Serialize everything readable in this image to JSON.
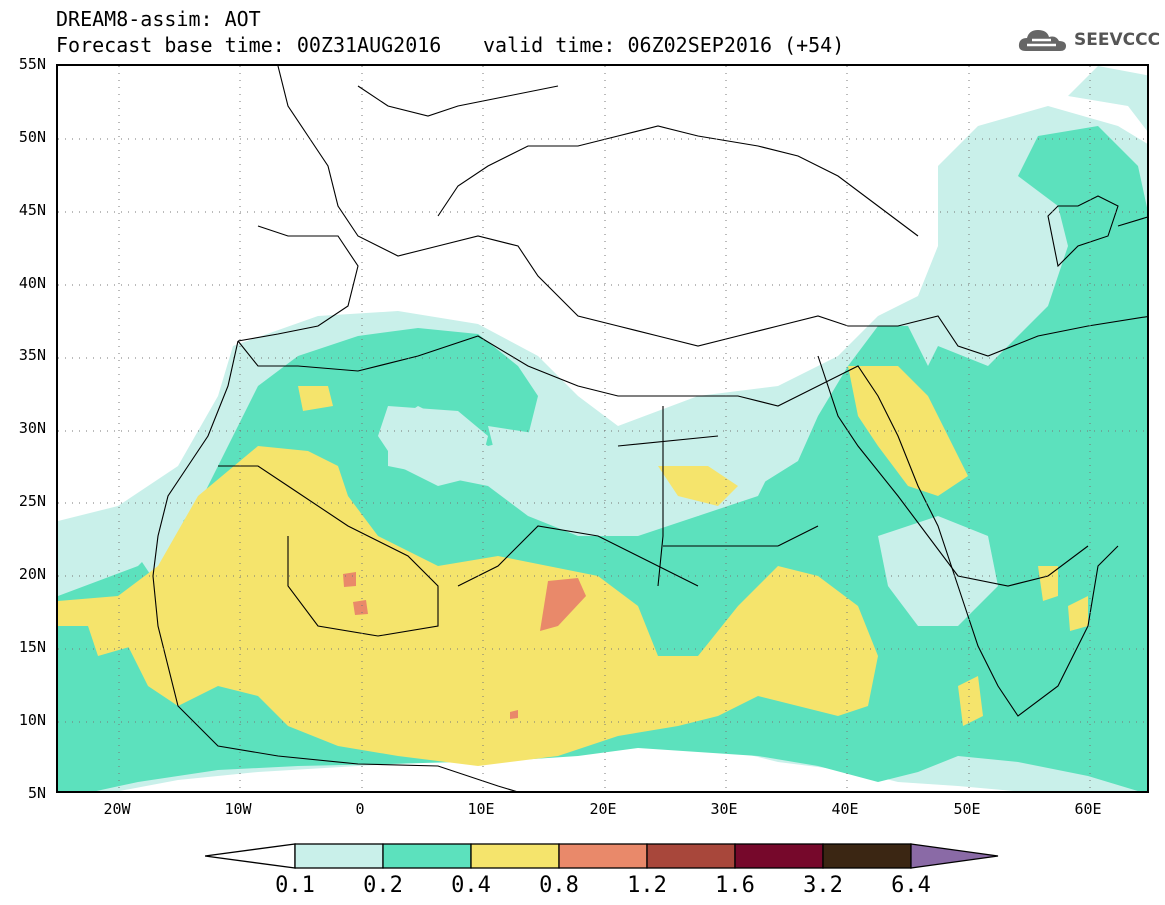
{
  "header": {
    "title": "DREAM8-assim: AOT",
    "base_time": "Forecast base time: 00Z31AUG2016",
    "valid_time": "valid time: 06Z02SEP2016 (+54)"
  },
  "logo": {
    "text": "SEEVCCC",
    "icon": "cloud-logo-icon"
  },
  "map": {
    "lon_range": [
      -25,
      65
    ],
    "lat_range": [
      5,
      55
    ],
    "lat_ticks": [
      "55N",
      "50N",
      "45N",
      "40N",
      "35N",
      "30N",
      "25N",
      "20N",
      "15N",
      "10N",
      "5N"
    ],
    "lon_ticks": [
      "20W",
      "10W",
      "0",
      "10E",
      "20E",
      "30E",
      "40E",
      "50E",
      "60E"
    ],
    "grid": "dotted"
  },
  "colorbar": {
    "labels": [
      "0.1",
      "0.2",
      "0.4",
      "0.8",
      "1.2",
      "1.6",
      "3.2",
      "6.4"
    ],
    "colors": {
      "under": "#ffffff",
      "b1": "#c9f0ea",
      "b2": "#5ce1bd",
      "b3": "#f5e46c",
      "b4": "#e9896a",
      "b5": "#a8473b",
      "b6": "#76082b",
      "b7": "#3b2613",
      "over": "#8a6aa6"
    }
  }
}
